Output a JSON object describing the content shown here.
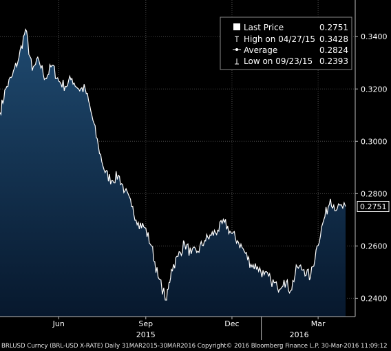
{
  "chart_data": {
    "type": "area",
    "title": "",
    "xlabel": "",
    "ylabel": "",
    "ylim": [
      0.233,
      0.354
    ],
    "y_ticks": [
      "0.2400",
      "0.2600",
      "0.2800",
      "0.3000",
      "0.3200",
      "0.3400"
    ],
    "x_ticks": [
      {
        "label": "Jun",
        "date": "2015-06-01"
      },
      {
        "label": "Sep",
        "date": "2015-09-01"
      },
      {
        "label": "Dec",
        "date": "2015-12-01"
      },
      {
        "label": "Mar",
        "date": "2016-03-01"
      }
    ],
    "year_labels": [
      {
        "label": "2015",
        "date": "2015-09-01"
      },
      {
        "label": "2016",
        "date": "2016-02-10"
      }
    ],
    "year_separators": [
      "2016-01-01"
    ],
    "grid": true,
    "colors": {
      "line": "#ffffff",
      "area_top": "#1f4a70",
      "area_bottom": "#07182d",
      "grid": "#4a4a4a"
    },
    "last_value_label": "0.2751",
    "legend": {
      "placement": "top-right",
      "items": [
        {
          "icon": "last-price-swatch",
          "label": "Last Price",
          "value": "0.2751"
        },
        {
          "icon": "high-marker",
          "label": "High on 04/27/15",
          "value": "0.3428"
        },
        {
          "icon": "average-marker",
          "label": "Average",
          "value": "0.2824"
        },
        {
          "icon": "low-marker",
          "label": "Low on 09/23/15",
          "value": "0.2393"
        }
      ]
    },
    "series": [
      {
        "x": [
          "2015-03-31",
          "2015-04-06",
          "2015-04-13",
          "2015-04-20",
          "2015-04-27",
          "2015-05-04",
          "2015-05-11",
          "2015-05-18",
          "2015-05-25",
          "2015-06-01",
          "2015-06-08",
          "2015-06-15",
          "2015-06-22",
          "2015-06-29",
          "2015-07-06",
          "2015-07-13",
          "2015-07-20",
          "2015-07-27",
          "2015-08-03",
          "2015-08-10",
          "2015-08-17",
          "2015-08-24",
          "2015-08-31",
          "2015-09-07",
          "2015-09-14",
          "2015-09-23",
          "2015-09-28",
          "2015-10-05",
          "2015-10-12",
          "2015-10-19",
          "2015-10-26",
          "2015-11-02",
          "2015-11-09",
          "2015-11-16",
          "2015-11-23",
          "2015-11-30",
          "2015-12-07",
          "2015-12-14",
          "2015-12-21",
          "2015-12-28",
          "2016-01-04",
          "2016-01-11",
          "2016-01-18",
          "2016-01-25",
          "2016-02-01",
          "2016-02-08",
          "2016-02-15",
          "2016-02-22",
          "2016-02-29",
          "2016-03-07",
          "2016-03-14",
          "2016-03-21",
          "2016-03-30"
        ],
        "values": [
          0.311,
          0.32,
          0.325,
          0.332,
          0.3428,
          0.327,
          0.331,
          0.324,
          0.329,
          0.323,
          0.321,
          0.324,
          0.32,
          0.32,
          0.31,
          0.298,
          0.288,
          0.285,
          0.287,
          0.281,
          0.275,
          0.269,
          0.267,
          0.26,
          0.248,
          0.2393,
          0.251,
          0.256,
          0.261,
          0.257,
          0.258,
          0.262,
          0.264,
          0.266,
          0.269,
          0.265,
          0.262,
          0.258,
          0.253,
          0.252,
          0.249,
          0.247,
          0.244,
          0.247,
          0.243,
          0.252,
          0.251,
          0.248,
          0.26,
          0.27,
          0.278,
          0.274,
          0.2751
        ]
      }
    ]
  },
  "footer": {
    "text": "BRLUSD Curncy (BRL-USD X-RATE) Daily 31MAR2015-30MAR2016 Copyright© 2016 Bloomberg Finance L.P. 30-Mar-2016 11:09:12"
  }
}
